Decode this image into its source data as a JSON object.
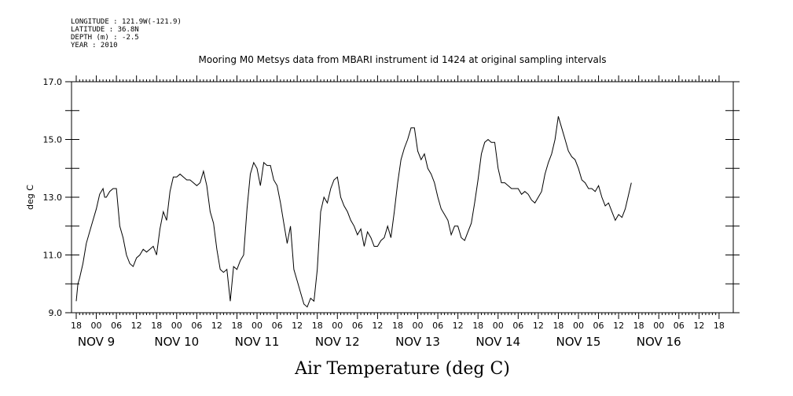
{
  "header": {
    "longitude": "LONGITUDE : 121.9W(-121.9)",
    "latitude": "LATITUDE : 36.8N",
    "depth": "DEPTH (m) : -2.5",
    "year": "YEAR : 2010"
  },
  "chart_data": {
    "type": "line",
    "title": "Mooring M0 Metsys data from MBARI instrument id 1424 at original sampling intervals",
    "ylabel": "deg C",
    "xtitle": "Air Temperature (deg C)",
    "ylim": [
      9.0,
      17.0
    ],
    "y_ticks": [
      "9.0",
      "11.0",
      "13.0",
      "15.0",
      "17.0"
    ],
    "x_unit": "hours since 2010-11-08 18:00",
    "x_range": [
      0,
      192
    ],
    "hour_ticks": [
      "18",
      "00",
      "06",
      "12",
      "18",
      "00",
      "06",
      "12",
      "18",
      "00",
      "06",
      "12",
      "18",
      "00",
      "06",
      "12",
      "18",
      "00",
      "06",
      "12",
      "18",
      "00",
      "06",
      "12",
      "18",
      "00",
      "06",
      "12",
      "18",
      "00",
      "06",
      "12",
      "18"
    ],
    "day_labels": [
      {
        "text": "NOV  9",
        "x": 6
      },
      {
        "text": "NOV 10",
        "x": 30
      },
      {
        "text": "NOV 11",
        "x": 54
      },
      {
        "text": "NOV 12",
        "x": 78
      },
      {
        "text": "NOV 13",
        "x": 102
      },
      {
        "text": "NOV 14",
        "x": 126
      },
      {
        "text": "NOV 15",
        "x": 150
      },
      {
        "text": "NOV 16",
        "x": 174
      }
    ],
    "grid": false,
    "series": [
      {
        "color": "#000000",
        "points": [
          [
            0,
            9.4
          ],
          [
            0.5,
            10.0
          ],
          [
            1,
            10.2
          ],
          [
            2,
            10.7
          ],
          [
            3,
            11.4
          ],
          [
            4,
            11.8
          ],
          [
            5,
            12.2
          ],
          [
            6,
            12.6
          ],
          [
            7,
            13.1
          ],
          [
            8,
            13.3
          ],
          [
            8.5,
            13.0
          ],
          [
            9,
            13.0
          ],
          [
            10,
            13.2
          ],
          [
            11,
            13.3
          ],
          [
            12,
            13.3
          ],
          [
            13,
            12.0
          ],
          [
            14,
            11.6
          ],
          [
            15,
            11.0
          ],
          [
            16,
            10.7
          ],
          [
            17,
            10.6
          ],
          [
            18,
            10.9
          ],
          [
            19,
            11.0
          ],
          [
            20,
            11.2
          ],
          [
            21,
            11.1
          ],
          [
            22,
            11.2
          ],
          [
            23,
            11.3
          ],
          [
            24,
            11.0
          ],
          [
            25,
            11.9
          ],
          [
            26,
            12.5
          ],
          [
            27,
            12.2
          ],
          [
            28,
            13.2
          ],
          [
            29,
            13.7
          ],
          [
            30,
            13.7
          ],
          [
            31,
            13.8
          ],
          [
            32,
            13.7
          ],
          [
            33,
            13.6
          ],
          [
            34,
            13.6
          ],
          [
            35,
            13.5
          ],
          [
            36,
            13.4
          ],
          [
            37,
            13.5
          ],
          [
            38,
            13.9
          ],
          [
            39,
            13.4
          ],
          [
            40,
            12.5
          ],
          [
            41,
            12.1
          ],
          [
            42,
            11.2
          ],
          [
            43,
            10.5
          ],
          [
            44,
            10.4
          ],
          [
            45,
            10.5
          ],
          [
            46,
            9.4
          ],
          [
            47,
            10.6
          ],
          [
            48,
            10.5
          ],
          [
            49,
            10.8
          ],
          [
            50,
            11.0
          ],
          [
            51,
            12.6
          ],
          [
            52,
            13.8
          ],
          [
            53,
            14.2
          ],
          [
            54,
            14.0
          ],
          [
            55,
            13.4
          ],
          [
            56,
            14.2
          ],
          [
            57,
            14.1
          ],
          [
            58,
            14.1
          ],
          [
            59,
            13.6
          ],
          [
            60,
            13.4
          ],
          [
            61,
            12.8
          ],
          [
            62,
            12.1
          ],
          [
            63,
            11.4
          ],
          [
            64,
            12.0
          ],
          [
            65,
            10.5
          ],
          [
            66,
            10.1
          ],
          [
            67,
            9.7
          ],
          [
            68,
            9.3
          ],
          [
            69,
            9.2
          ],
          [
            70,
            9.5
          ],
          [
            71,
            9.4
          ],
          [
            72,
            10.5
          ],
          [
            73,
            12.5
          ],
          [
            74,
            13.0
          ],
          [
            75,
            12.8
          ],
          [
            76,
            13.3
          ],
          [
            77,
            13.6
          ],
          [
            78,
            13.7
          ],
          [
            79,
            13.0
          ],
          [
            80,
            12.7
          ],
          [
            81,
            12.5
          ],
          [
            82,
            12.2
          ],
          [
            83,
            12.0
          ],
          [
            84,
            11.7
          ],
          [
            85,
            11.9
          ],
          [
            86,
            11.3
          ],
          [
            87,
            11.8
          ],
          [
            88,
            11.6
          ],
          [
            89,
            11.3
          ],
          [
            90,
            11.3
          ],
          [
            91,
            11.5
          ],
          [
            92,
            11.6
          ],
          [
            93,
            12.0
          ],
          [
            94,
            11.6
          ],
          [
            95,
            12.5
          ],
          [
            96,
            13.5
          ],
          [
            97,
            14.3
          ],
          [
            98,
            14.7
          ],
          [
            99,
            15.0
          ],
          [
            100,
            15.4
          ],
          [
            101,
            15.4
          ],
          [
            102,
            14.6
          ],
          [
            103,
            14.3
          ],
          [
            104,
            14.5
          ],
          [
            105,
            14.0
          ],
          [
            106,
            13.8
          ],
          [
            107,
            13.5
          ],
          [
            108,
            13.0
          ],
          [
            109,
            12.6
          ],
          [
            110,
            12.4
          ],
          [
            111,
            12.2
          ],
          [
            112,
            11.7
          ],
          [
            113,
            12.0
          ],
          [
            114,
            12.0
          ],
          [
            115,
            11.6
          ],
          [
            116,
            11.5
          ],
          [
            117,
            11.8
          ],
          [
            118,
            12.1
          ],
          [
            119,
            12.8
          ],
          [
            120,
            13.6
          ],
          [
            121,
            14.5
          ],
          [
            122,
            14.9
          ],
          [
            123,
            15.0
          ],
          [
            124,
            14.9
          ],
          [
            125,
            14.9
          ],
          [
            126,
            14.0
          ],
          [
            127,
            13.5
          ],
          [
            128,
            13.5
          ],
          [
            129,
            13.4
          ],
          [
            130,
            13.3
          ],
          [
            131,
            13.3
          ],
          [
            132,
            13.3
          ],
          [
            133,
            13.1
          ],
          [
            134,
            13.2
          ],
          [
            135,
            13.1
          ],
          [
            136,
            12.9
          ],
          [
            137,
            12.8
          ],
          [
            138,
            13.0
          ],
          [
            139,
            13.2
          ],
          [
            140,
            13.8
          ],
          [
            141,
            14.2
          ],
          [
            142,
            14.5
          ],
          [
            143,
            15.0
          ],
          [
            144,
            15.8
          ],
          [
            145,
            15.4
          ],
          [
            146,
            15.0
          ],
          [
            147,
            14.6
          ],
          [
            148,
            14.4
          ],
          [
            149,
            14.3
          ],
          [
            150,
            14.0
          ],
          [
            151,
            13.6
          ],
          [
            152,
            13.5
          ],
          [
            153,
            13.3
          ],
          [
            154,
            13.3
          ],
          [
            155,
            13.2
          ],
          [
            156,
            13.4
          ],
          [
            157,
            13.0
          ],
          [
            158,
            12.7
          ],
          [
            159,
            12.8
          ],
          [
            160,
            12.5
          ],
          [
            161,
            12.2
          ],
          [
            162,
            12.4
          ],
          [
            163,
            12.3
          ],
          [
            164,
            12.6
          ],
          [
            165,
            13.1
          ],
          [
            165.8,
            13.5
          ]
        ]
      }
    ]
  }
}
